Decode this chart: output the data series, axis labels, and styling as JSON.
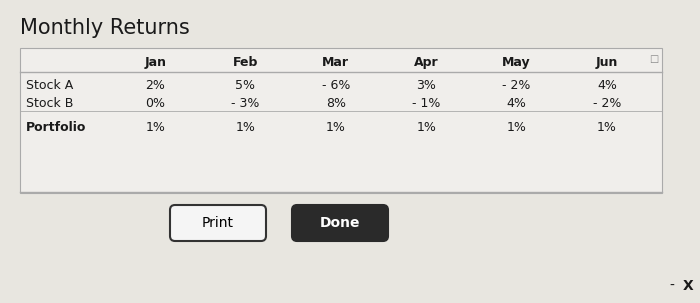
{
  "title": "Monthly Returns",
  "bg_color": "#e8e6e0",
  "table_bg": "#f0eeeb",
  "table_border_color": "#aaaaaa",
  "columns": [
    "",
    "Jan",
    "Feb",
    "Mar",
    "Apr",
    "May",
    "Jun"
  ],
  "rows": [
    [
      "Stock A",
      "2%",
      "5%",
      "- 6%",
      "3%",
      "- 2%",
      "4%"
    ],
    [
      "Stock B",
      "0%",
      "- 3%",
      "8%",
      "- 1%",
      "4%",
      "- 2%"
    ],
    [
      "Portfolio",
      "1%",
      "1%",
      "1%",
      "1%",
      "1%",
      "1%"
    ]
  ],
  "button_print_label": "Print",
  "button_done_label": "Done",
  "button_print_facecolor": "#f5f5f5",
  "button_print_edgecolor": "#333333",
  "button_done_facecolor": "#2a2a2a",
  "button_done_text_color": "#ffffff",
  "button_print_text_color": "#000000",
  "window_title_fontsize": 15,
  "title_fontweight": "normal",
  "minus_symbol": "-",
  "close_symbol": "X",
  "header_fontsize": 9,
  "cell_fontsize": 9,
  "label_fontsize": 9
}
